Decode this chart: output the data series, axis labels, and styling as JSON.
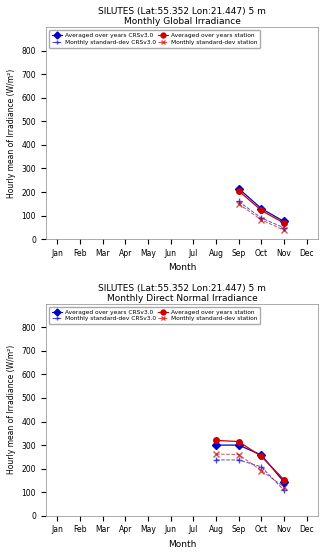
{
  "title_line1": "SILUTES (Lat:55.352 Lon:21.447) 5 m",
  "subplot1_title": "Monthly Global Irradiance",
  "subplot2_title": "Monthly Direct Normal Irradiance",
  "ylabel": "Hourly mean of Irradiance (W/m²)",
  "xlabel": "Month",
  "months": [
    "Jan",
    "Feb",
    "Mar",
    "Apr",
    "May",
    "Jun",
    "Jul",
    "Aug",
    "Sep",
    "Oct",
    "Nov",
    "Dec"
  ],
  "month_indices": [
    1,
    2,
    3,
    4,
    5,
    6,
    7,
    8,
    9,
    10,
    11,
    12
  ],
  "global_crs_months": [
    9,
    10,
    11
  ],
  "global_crs_mean": [
    215,
    130,
    75
  ],
  "global_crs_std": [
    160,
    90,
    48
  ],
  "global_sta_months": [
    9,
    10,
    11
  ],
  "global_sta_mean": [
    205,
    122,
    68
  ],
  "global_sta_std": [
    150,
    82,
    38
  ],
  "direct_crs_months": [
    8,
    9,
    10,
    11
  ],
  "direct_crs_mean": [
    300,
    300,
    258,
    143
  ],
  "direct_crs_std": [
    237,
    237,
    208,
    108
  ],
  "direct_sta_months": [
    8,
    9,
    10,
    11
  ],
  "direct_sta_mean": [
    320,
    315,
    252,
    153
  ],
  "direct_sta_std": [
    262,
    260,
    192,
    122
  ],
  "ylim": [
    0,
    900
  ],
  "yticks": [
    0,
    100,
    200,
    300,
    400,
    500,
    600,
    700,
    800
  ],
  "color_crs": "#0000cc",
  "color_sta": "#cc0000",
  "bg_color": "#ffffff",
  "fig_bg": "#ffffff"
}
